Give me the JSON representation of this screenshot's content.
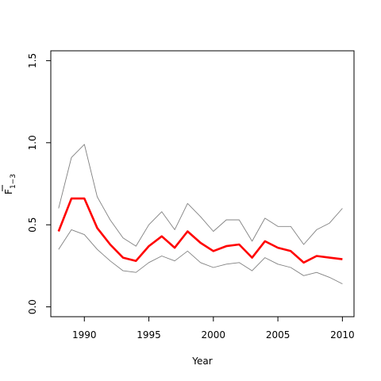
{
  "chart_data": {
    "type": "line",
    "title": "",
    "xlabel": "Year",
    "ylabel_main": "F",
    "ylabel_sub": "1−3",
    "xlim": [
      1987.4,
      2010.9
    ],
    "ylim": [
      -0.06,
      1.56
    ],
    "x_ticks": [
      1990,
      1995,
      2000,
      2005,
      2010
    ],
    "x_tick_labels": [
      "1990",
      "1995",
      "2000",
      "2005",
      "2010"
    ],
    "y_ticks": [
      0.0,
      0.5,
      1.0,
      1.5
    ],
    "y_tick_labels": [
      "0.0",
      "0.5",
      "1.0",
      "1.5"
    ],
    "grid": false,
    "x": [
      1988,
      1989,
      1990,
      1991,
      1992,
      1993,
      1994,
      1995,
      1996,
      1997,
      1998,
      1999,
      2000,
      2001,
      2002,
      2003,
      2004,
      2005,
      2006,
      2007,
      2008,
      2009,
      2010
    ],
    "series": [
      {
        "role": "upper",
        "color": "#808080",
        "values": [
          0.6,
          0.91,
          0.99,
          0.67,
          0.53,
          0.42,
          0.37,
          0.5,
          0.58,
          0.47,
          0.63,
          0.55,
          0.46,
          0.53,
          0.53,
          0.4,
          0.54,
          0.49,
          0.49,
          0.38,
          0.47,
          0.51,
          0.6
        ]
      },
      {
        "role": "estimate",
        "color": "#ff0000",
        "values": [
          0.46,
          0.66,
          0.66,
          0.48,
          0.38,
          0.3,
          0.28,
          0.37,
          0.43,
          0.36,
          0.46,
          0.39,
          0.34,
          0.37,
          0.38,
          0.3,
          0.4,
          0.36,
          0.34,
          0.27,
          0.31,
          0.3,
          0.29
        ]
      },
      {
        "role": "lower",
        "color": "#808080",
        "values": [
          0.35,
          0.47,
          0.44,
          0.35,
          0.28,
          0.22,
          0.21,
          0.27,
          0.31,
          0.28,
          0.34,
          0.27,
          0.24,
          0.26,
          0.27,
          0.22,
          0.3,
          0.26,
          0.24,
          0.19,
          0.21,
          0.18,
          0.14
        ]
      }
    ]
  }
}
